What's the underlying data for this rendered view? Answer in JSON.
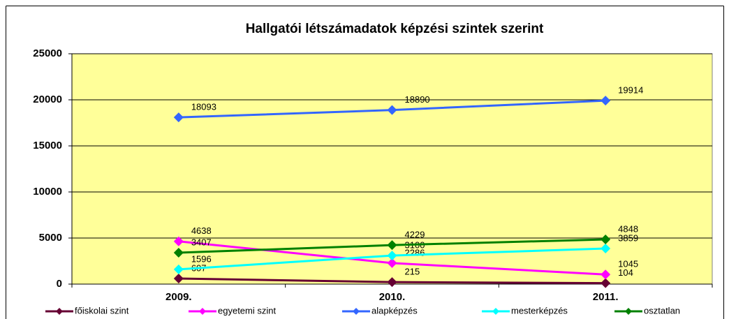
{
  "chart_data": {
    "type": "line",
    "title": "Hallgatói létszámadatok képzési szintek szerint",
    "categories": [
      "2009.",
      "2010.",
      "2011."
    ],
    "series": [
      {
        "name": "főiskolai szint",
        "color": "#660033",
        "values": [
          607,
          215,
          104
        ]
      },
      {
        "name": "egyetemi szint",
        "color": "#ff00ff",
        "values": [
          4638,
          2286,
          1045
        ]
      },
      {
        "name": "alapképzés",
        "color": "#3366ff",
        "values": [
          18093,
          18890,
          19914
        ]
      },
      {
        "name": "mesterképzés",
        "color": "#00ffff",
        "values": [
          1596,
          3100,
          3859
        ]
      },
      {
        "name": "osztatlan",
        "color": "#008000",
        "values": [
          3407,
          4229,
          4848
        ]
      }
    ],
    "ylim": [
      0,
      25000
    ],
    "yticks": [
      0,
      5000,
      10000,
      15000,
      20000,
      25000
    ],
    "grid": true,
    "legend": "bottom",
    "plot_background": "#ffff99"
  }
}
